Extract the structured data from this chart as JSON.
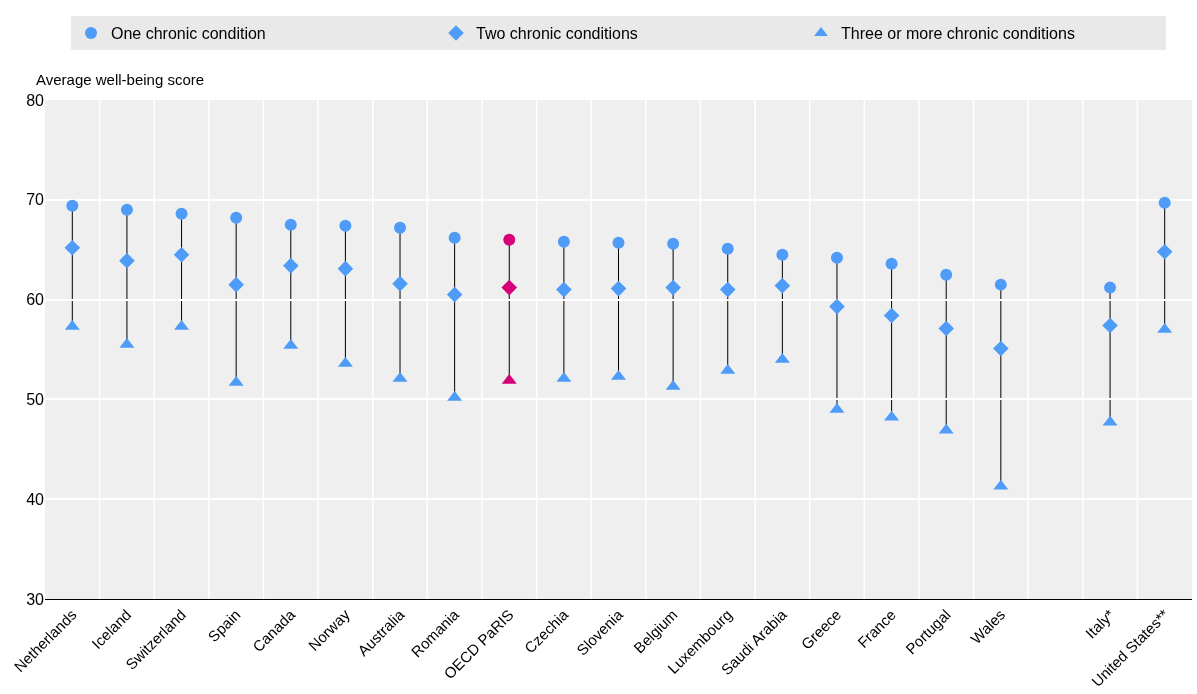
{
  "chart_data": {
    "type": "scatter",
    "ylabel": "Average well-being score",
    "categories": [
      "Netherlands",
      "Iceland",
      "Switzerland",
      "Spain",
      "Canada",
      "Norway",
      "Australia",
      "Romania",
      "OECD PaRIS",
      "Czechia",
      "Slovenia",
      "Belgium",
      "Luxembourg",
      "Saudi Arabia",
      "Greece",
      "France",
      "Portugal",
      "Wales",
      null,
      "Italy*",
      "United States**"
    ],
    "series": [
      {
        "name": "One chronic condition",
        "marker": "circle",
        "colors": [
          "#4e9cf7",
          "#4e9cf7",
          "#4e9cf7",
          "#4e9cf7",
          "#4e9cf7",
          "#4e9cf7",
          "#4e9cf7",
          "#4e9cf7",
          "#d6007b",
          "#4e9cf7",
          "#4e9cf7",
          "#4e9cf7",
          "#4e9cf7",
          "#4e9cf7",
          "#4e9cf7",
          "#4e9cf7",
          "#4e9cf7",
          "#4e9cf7",
          "#4e9cf7",
          "#4e9cf7",
          "#4e9cf7"
        ],
        "values": [
          69.4,
          69.0,
          68.6,
          68.2,
          67.5,
          67.4,
          67.2,
          66.2,
          66.0,
          65.8,
          65.7,
          65.6,
          65.1,
          64.5,
          64.2,
          63.6,
          62.5,
          61.5,
          null,
          61.2,
          69.7
        ]
      },
      {
        "name": "Two chronic conditions",
        "marker": "diamond",
        "colors": [
          "#4e9cf7",
          "#4e9cf7",
          "#4e9cf7",
          "#4e9cf7",
          "#4e9cf7",
          "#4e9cf7",
          "#4e9cf7",
          "#4e9cf7",
          "#d6007b",
          "#4e9cf7",
          "#4e9cf7",
          "#4e9cf7",
          "#4e9cf7",
          "#4e9cf7",
          "#4e9cf7",
          "#4e9cf7",
          "#4e9cf7",
          "#4e9cf7",
          "#4e9cf7",
          "#4e9cf7",
          "#4e9cf7"
        ],
        "values": [
          65.2,
          63.9,
          64.5,
          61.5,
          63.4,
          63.1,
          61.6,
          60.5,
          61.2,
          61.0,
          61.1,
          61.2,
          61.0,
          61.4,
          59.3,
          58.4,
          57.1,
          55.1,
          null,
          57.4,
          64.8
        ]
      },
      {
        "name": "Three or more chronic conditions",
        "marker": "triangle",
        "colors": [
          "#4e9cf7",
          "#4e9cf7",
          "#4e9cf7",
          "#4e9cf7",
          "#4e9cf7",
          "#4e9cf7",
          "#4e9cf7",
          "#4e9cf7",
          "#d6007b",
          "#4e9cf7",
          "#4e9cf7",
          "#4e9cf7",
          "#4e9cf7",
          "#4e9cf7",
          "#4e9cf7",
          "#4e9cf7",
          "#4e9cf7",
          "#4e9cf7",
          "#4e9cf7",
          "#4e9cf7",
          "#4e9cf7"
        ],
        "values": [
          57.3,
          55.5,
          57.3,
          51.7,
          55.4,
          53.6,
          52.1,
          50.2,
          51.9,
          52.1,
          52.3,
          51.3,
          52.9,
          54.0,
          49.0,
          48.2,
          46.9,
          41.3,
          null,
          47.7,
          57.0
        ]
      }
    ],
    "ylim": [
      30,
      80
    ],
    "yticks": [
      30,
      40,
      50,
      60,
      70,
      80
    ],
    "grid": true,
    "legend": "top"
  }
}
